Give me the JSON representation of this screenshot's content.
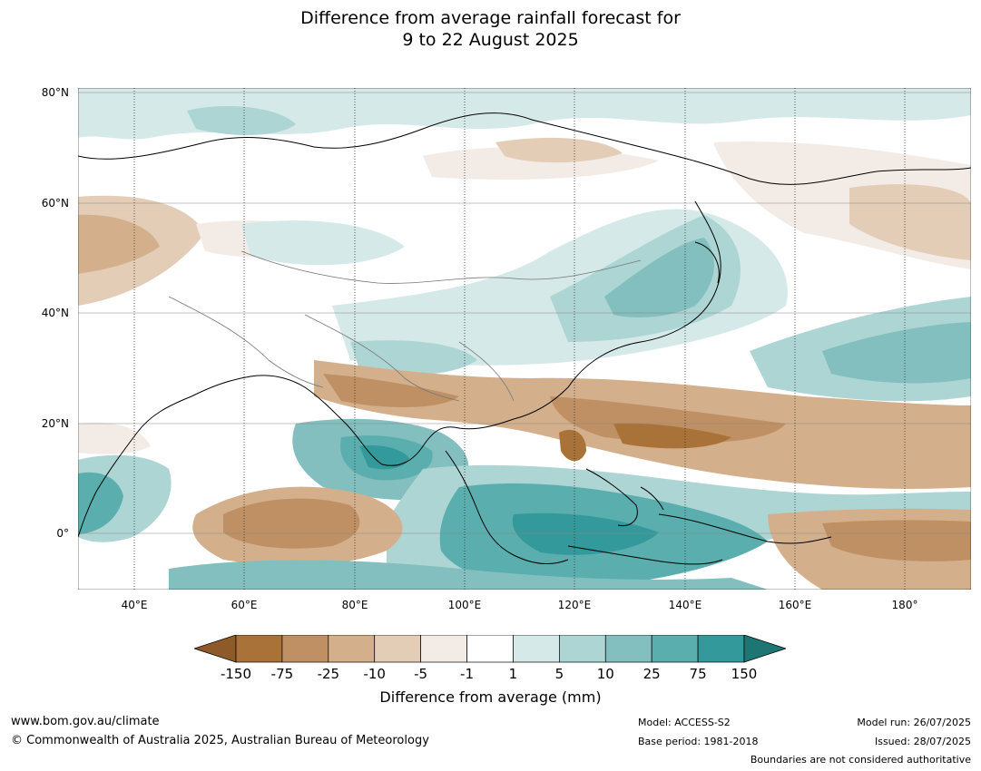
{
  "title": {
    "line1": "Difference from average rainfall forecast for",
    "line2": "9 to 22 August 2025"
  },
  "map": {
    "lat_labels": [
      "80°N",
      "60°N",
      "40°N",
      "20°N",
      "0°"
    ],
    "lon_labels": [
      "40°E",
      "60°E",
      "80°E",
      "100°E",
      "120°E",
      "140°E",
      "160°E",
      "180°"
    ]
  },
  "legend": {
    "ticks": [
      "-150",
      "-75",
      "-25",
      "-10",
      "-5",
      "-1",
      "1",
      "5",
      "10",
      "25",
      "75",
      "150"
    ],
    "colors": [
      "#8f5a2a",
      "#a97238",
      "#bf9064",
      "#d3b08b",
      "#e3cdb7",
      "#f3ece6",
      "#ffffff",
      "#d5e9e8",
      "#add5d4",
      "#82bfbe",
      "#5aaeae",
      "#34999a",
      "#1d7574"
    ],
    "title": "Difference from average (mm)"
  },
  "footer": {
    "website": "www.bom.gov.au/climate",
    "copyright": "© Commonwealth of Australia 2025, Australian Bureau of Meteorology",
    "model": "Model: ACCESS-S2",
    "base_period": "Base period: 1981-2018",
    "model_run": "Model run: 26/07/2025",
    "issued": "Issued: 28/07/2025",
    "disclaimer": "Boundaries are not considered authoritative"
  }
}
